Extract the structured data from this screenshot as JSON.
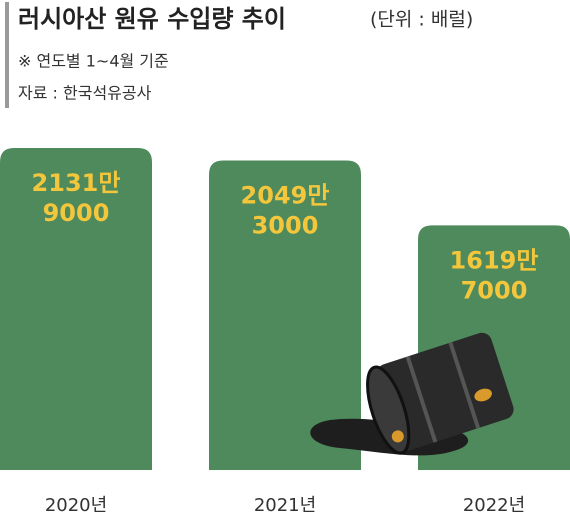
{
  "chart_data": {
    "type": "bar",
    "title": "러시아산 원유 수입량 추이",
    "subtitle": "(단위 : 배럴)",
    "notes": [
      "※ 연도별 1~4월 기준",
      "자료 : 한국석유공사"
    ],
    "categories": [
      "2020년",
      "2021년",
      "2022년"
    ],
    "values": [
      21319000,
      20493000,
      16197000
    ],
    "value_labels": [
      [
        "2131만",
        "9000"
      ],
      [
        "2049만",
        "3000"
      ],
      [
        "1619만",
        "7000"
      ]
    ],
    "color": "#4e8a5c",
    "label_color": "#f4c63c"
  }
}
